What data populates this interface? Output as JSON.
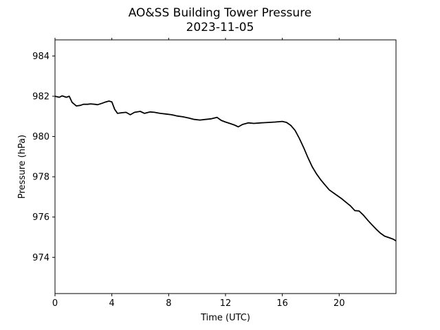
{
  "chart_data": {
    "type": "line",
    "title": "AO&SS Building Tower Pressure",
    "subtitle": "2023-11-05",
    "xlabel": "Time (UTC)",
    "ylabel": "Pressure (hPa)",
    "xlim": [
      0,
      24
    ],
    "ylim": [
      972.2,
      984.8
    ],
    "xticks": [
      0,
      4,
      8,
      12,
      16,
      20
    ],
    "xtick_labels": [
      "0",
      "4",
      "8",
      "12",
      "16",
      "20"
    ],
    "yticks": [
      974,
      976,
      978,
      980,
      982,
      984
    ],
    "ytick_labels": [
      "974",
      "976",
      "978",
      "980",
      "982",
      "984"
    ],
    "grid": false,
    "line_color": "#000000",
    "series": [
      {
        "x": [
          0,
          0.3,
          0.5,
          0.8,
          1.0,
          1.2,
          1.5,
          1.8,
          2.0,
          2.3,
          2.5,
          2.8,
          3.0,
          3.3,
          3.5,
          3.8,
          4.0,
          4.2,
          4.4,
          4.7,
          5.0,
          5.3,
          5.6,
          6.0,
          6.3,
          6.7,
          7.0,
          7.4,
          7.8,
          8.2,
          8.6,
          9.0,
          9.4,
          9.8,
          10.2,
          10.6,
          11.0,
          11.4,
          11.7,
          12.0,
          12.3,
          12.6,
          12.9,
          13.2,
          13.6,
          14.0,
          14.5,
          15.0,
          15.5,
          16.0,
          16.3,
          16.6,
          16.9,
          17.2,
          17.5,
          17.8,
          18.1,
          18.4,
          18.7,
          19.0,
          19.3,
          19.6,
          19.9,
          20.2,
          20.5,
          20.8,
          21.1,
          21.4,
          21.7,
          22.0,
          22.3,
          22.6,
          22.9,
          23.2,
          23.5,
          23.8,
          24.0
        ],
        "y": [
          982.0,
          981.95,
          982.02,
          981.95,
          982.0,
          981.7,
          981.52,
          981.55,
          981.6,
          981.6,
          981.62,
          981.6,
          981.58,
          981.65,
          981.7,
          981.76,
          981.72,
          981.35,
          981.15,
          981.18,
          981.2,
          981.08,
          981.2,
          981.25,
          981.15,
          981.22,
          981.2,
          981.15,
          981.12,
          981.08,
          981.02,
          980.98,
          980.92,
          980.85,
          980.82,
          980.85,
          980.88,
          980.95,
          980.8,
          980.72,
          980.65,
          980.58,
          980.48,
          980.6,
          980.68,
          980.65,
          980.68,
          980.7,
          980.72,
          980.75,
          980.7,
          980.55,
          980.3,
          979.9,
          979.45,
          978.95,
          978.5,
          978.15,
          977.85,
          977.6,
          977.35,
          977.2,
          977.05,
          976.9,
          976.72,
          976.55,
          976.32,
          976.3,
          976.1,
          975.85,
          975.62,
          975.4,
          975.2,
          975.05,
          974.98,
          974.9,
          974.82
        ]
      }
    ]
  }
}
